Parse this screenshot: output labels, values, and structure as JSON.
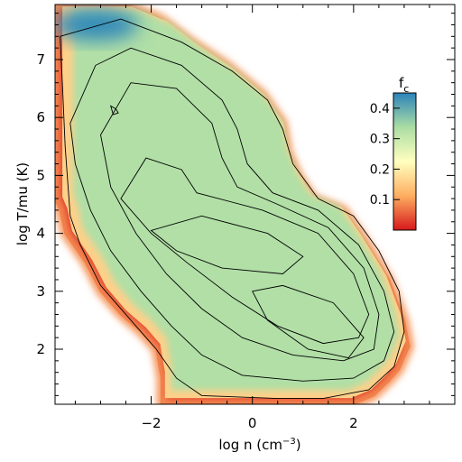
{
  "chart_data": {
    "type": "heatmap",
    "xlabel_main": "log n (cm",
    "xlabel_sup": "−3",
    "xlabel_end": ")",
    "ylabel": "log T/mu (K)",
    "xlim": [
      -3.9,
      4.0
    ],
    "ylim": [
      1.05,
      7.95
    ],
    "x_ticks": [
      -2,
      0,
      2
    ],
    "x_tick_labels": [
      "−2",
      "0",
      "2"
    ],
    "y_ticks": [
      2,
      3,
      4,
      5,
      6,
      7
    ],
    "y_tick_labels": [
      "2",
      "3",
      "4",
      "5",
      "6",
      "7"
    ],
    "colorbar": {
      "title_main": "f",
      "title_sub": "c",
      "range": [
        0.0,
        0.45
      ],
      "ticks": [
        0.1,
        0.2,
        0.3,
        0.4
      ],
      "tick_labels": [
        "0.1",
        "0.2",
        "0.3",
        "0.4"
      ],
      "colormap": [
        "#d7191c",
        "#fdae61",
        "#ffffbf",
        "#abdda4",
        "#2b83ba"
      ]
    },
    "region_outline": [
      [
        -3.9,
        7.95
      ],
      [
        -2.5,
        7.95
      ],
      [
        -1.8,
        7.7
      ],
      [
        -1.2,
        7.3
      ],
      [
        -0.5,
        6.9
      ],
      [
        0.2,
        6.4
      ],
      [
        0.6,
        5.9
      ],
      [
        0.7,
        5.4
      ],
      [
        0.9,
        5.0
      ],
      [
        1.2,
        4.6
      ],
      [
        1.8,
        4.4
      ],
      [
        2.2,
        3.9
      ],
      [
        2.7,
        3.2
      ],
      [
        3.0,
        2.5
      ],
      [
        3.1,
        2.05
      ],
      [
        2.9,
        1.65
      ],
      [
        2.7,
        1.45
      ],
      [
        2.4,
        1.2
      ],
      [
        2.0,
        1.05
      ],
      [
        -1.8,
        1.05
      ],
      [
        -1.8,
        1.5
      ],
      [
        -1.9,
        2.0
      ],
      [
        -2.2,
        2.3
      ],
      [
        -2.6,
        2.6
      ],
      [
        -3.0,
        3.0
      ],
      [
        -3.3,
        3.5
      ],
      [
        -3.7,
        4.0
      ],
      [
        -3.8,
        4.4
      ],
      [
        -3.9,
        4.6
      ]
    ],
    "blue_region_center": [
      -3.1,
      7.6
    ],
    "dominant_value": 0.33,
    "contours": [
      [
        [
          -3.8,
          7.4
        ],
        [
          -2.6,
          7.7
        ],
        [
          -1.4,
          7.3
        ],
        [
          -0.4,
          6.8
        ],
        [
          0.3,
          6.3
        ],
        [
          0.6,
          5.8
        ],
        [
          0.8,
          5.2
        ],
        [
          1.3,
          4.6
        ],
        [
          2.0,
          4.3
        ],
        [
          2.5,
          3.7
        ],
        [
          2.9,
          3.0
        ],
        [
          3.0,
          2.3
        ],
        [
          2.8,
          1.7
        ],
        [
          2.3,
          1.3
        ],
        [
          1.4,
          1.15
        ],
        [
          0.5,
          1.15
        ],
        [
          -1.0,
          1.2
        ],
        [
          -1.5,
          1.5
        ],
        [
          -1.9,
          2.0
        ],
        [
          -2.4,
          2.5
        ],
        [
          -3.0,
          3.1
        ],
        [
          -3.4,
          3.8
        ],
        [
          -3.6,
          4.3
        ],
        [
          -3.7,
          5.5
        ],
        [
          -3.75,
          6.5
        ],
        [
          -3.8,
          7.4
        ]
      ],
      [
        [
          -3.6,
          5.9
        ],
        [
          -3.1,
          6.9
        ],
        [
          -2.4,
          7.2
        ],
        [
          -1.4,
          6.9
        ],
        [
          -0.6,
          6.3
        ],
        [
          -0.3,
          5.8
        ],
        [
          -0.1,
          5.2
        ],
        [
          0.4,
          4.7
        ],
        [
          1.3,
          4.4
        ],
        [
          2.1,
          3.8
        ],
        [
          2.6,
          3.0
        ],
        [
          2.8,
          2.3
        ],
        [
          2.6,
          1.8
        ],
        [
          2.0,
          1.5
        ],
        [
          1.0,
          1.45
        ],
        [
          -0.2,
          1.55
        ],
        [
          -1.0,
          1.9
        ],
        [
          -1.6,
          2.4
        ],
        [
          -2.2,
          3.0
        ],
        [
          -2.8,
          3.7
        ],
        [
          -3.2,
          4.4
        ],
        [
          -3.5,
          5.2
        ],
        [
          -3.6,
          5.9
        ]
      ],
      [
        [
          -3.0,
          5.7
        ],
        [
          -2.4,
          6.6
        ],
        [
          -1.5,
          6.5
        ],
        [
          -0.8,
          5.9
        ],
        [
          -0.6,
          5.3
        ],
        [
          -0.3,
          4.8
        ],
        [
          0.5,
          4.5
        ],
        [
          1.5,
          4.1
        ],
        [
          2.2,
          3.4
        ],
        [
          2.5,
          2.6
        ],
        [
          2.4,
          2.0
        ],
        [
          1.8,
          1.8
        ],
        [
          0.8,
          1.9
        ],
        [
          -0.2,
          2.2
        ],
        [
          -1.0,
          2.7
        ],
        [
          -1.7,
          3.3
        ],
        [
          -2.3,
          4.0
        ],
        [
          -2.8,
          4.8
        ],
        [
          -3.0,
          5.7
        ]
      ],
      [
        [
          -2.6,
          4.6
        ],
        [
          -2.1,
          5.3
        ],
        [
          -1.4,
          5.1
        ],
        [
          -1.1,
          4.7
        ],
        [
          0.2,
          4.4
        ],
        [
          1.3,
          4.0
        ],
        [
          2.0,
          3.3
        ],
        [
          2.3,
          2.6
        ],
        [
          2.1,
          2.2
        ],
        [
          1.4,
          2.1
        ],
        [
          0.5,
          2.4
        ],
        [
          -0.4,
          2.9
        ],
        [
          -1.3,
          3.5
        ],
        [
          -2.0,
          4.0
        ],
        [
          -2.6,
          4.6
        ]
      ],
      [
        [
          -2.0,
          4.05
        ],
        [
          -1.0,
          4.3
        ],
        [
          0.3,
          4.0
        ],
        [
          1.0,
          3.6
        ],
        [
          0.6,
          3.3
        ],
        [
          -0.6,
          3.4
        ],
        [
          -1.5,
          3.7
        ],
        [
          -2.0,
          4.05
        ]
      ],
      [
        [
          0.0,
          3.0
        ],
        [
          0.6,
          3.1
        ],
        [
          1.6,
          2.8
        ],
        [
          2.2,
          2.2
        ],
        [
          1.9,
          1.85
        ],
        [
          1.1,
          2.0
        ],
        [
          0.3,
          2.5
        ],
        [
          0.0,
          3.0
        ]
      ],
      [
        [
          -2.8,
          6.2
        ],
        [
          -2.7,
          6.15
        ],
        [
          -2.65,
          6.08
        ],
        [
          -2.75,
          6.05
        ],
        [
          -2.8,
          6.2
        ]
      ]
    ]
  }
}
